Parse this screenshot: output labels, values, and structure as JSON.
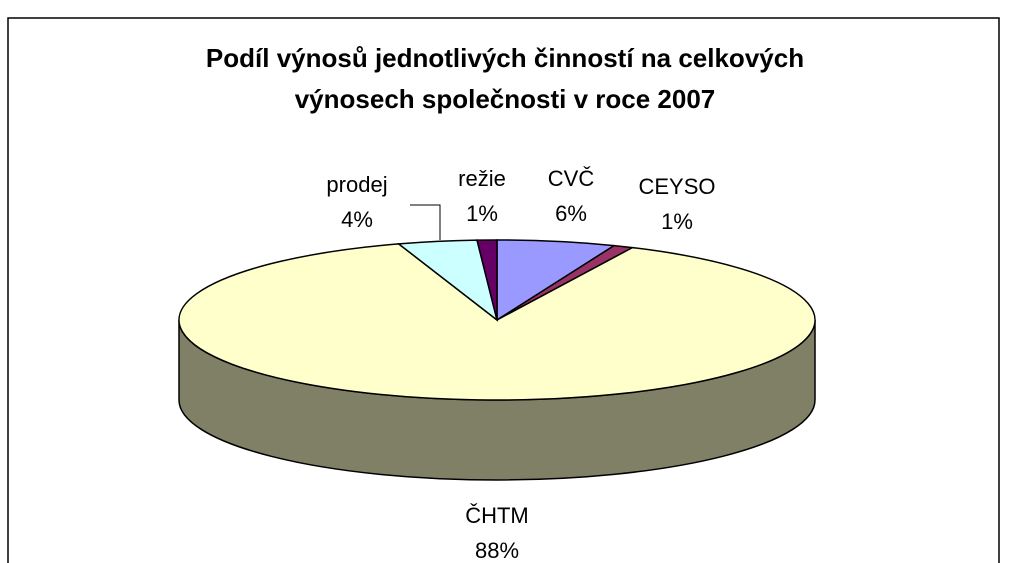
{
  "chart_data": {
    "type": "pie3d",
    "title": [
      "Podíl výnosů jednotlivých činností na celkových",
      "výnosech společnosti v roce 2007"
    ],
    "categories": [
      "CVČ",
      "CEYSO",
      "ČHTM",
      "prodej",
      "režie"
    ],
    "values": [
      6,
      1,
      88,
      4,
      1
    ],
    "value_labels": [
      "6%",
      "1%",
      "88%",
      "4%",
      "1%"
    ],
    "colors": [
      "#9999ff",
      "#993366",
      "#ffffcc",
      "#ccffff",
      "#660066"
    ]
  }
}
